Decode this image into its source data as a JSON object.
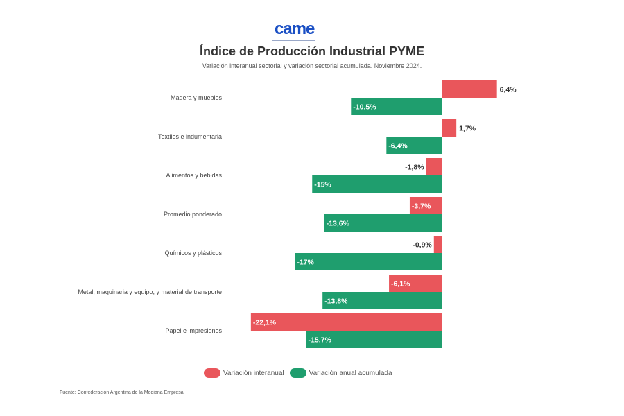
{
  "header": {
    "logo_text": "came",
    "title": "Índice de Producción Industrial PYME",
    "subtitle": "Variación interanual sectorial y variación sectorial acumulada. Noviembre 2024."
  },
  "chart_data": {
    "type": "bar",
    "orientation": "horizontal",
    "categories": [
      "Madera y muebles",
      "Textiles e indumentaria",
      "Alimentos y bebidas",
      "Promedio ponderado",
      "Químicos y plásticos",
      "Metal, maquinaria y equipo, y material de transporte",
      "Papel e impresiones"
    ],
    "series": [
      {
        "name": "Variación interanual",
        "color": "#e9565b",
        "values": [
          6.4,
          1.7,
          -1.8,
          -3.7,
          -0.9,
          -6.1,
          -22.1
        ],
        "labels": [
          "6,4%",
          "1,7%",
          "-1,8%",
          "-3,7%",
          "-0,9%",
          "-6,1%",
          "-22,1%"
        ]
      },
      {
        "name": "Variación anual acumulada",
        "color": "#1f9e6e",
        "values": [
          -10.5,
          -6.4,
          -15,
          -13.6,
          -17,
          -13.8,
          -15.7
        ],
        "labels": [
          "-10,5%",
          "-6,4%",
          "-15%",
          "-13,6%",
          "-17%",
          "-13,8%",
          "-15,7%"
        ]
      }
    ],
    "grid": false,
    "legend_position": "bottom"
  },
  "legend": [
    {
      "label": "Variación interanual",
      "color": "#e9565b"
    },
    {
      "label": "Variación anual acumulada",
      "color": "#1f9e6e"
    }
  ],
  "footer": {
    "source": "Fuente: Confederación Argentina de la Mediana Empresa"
  }
}
